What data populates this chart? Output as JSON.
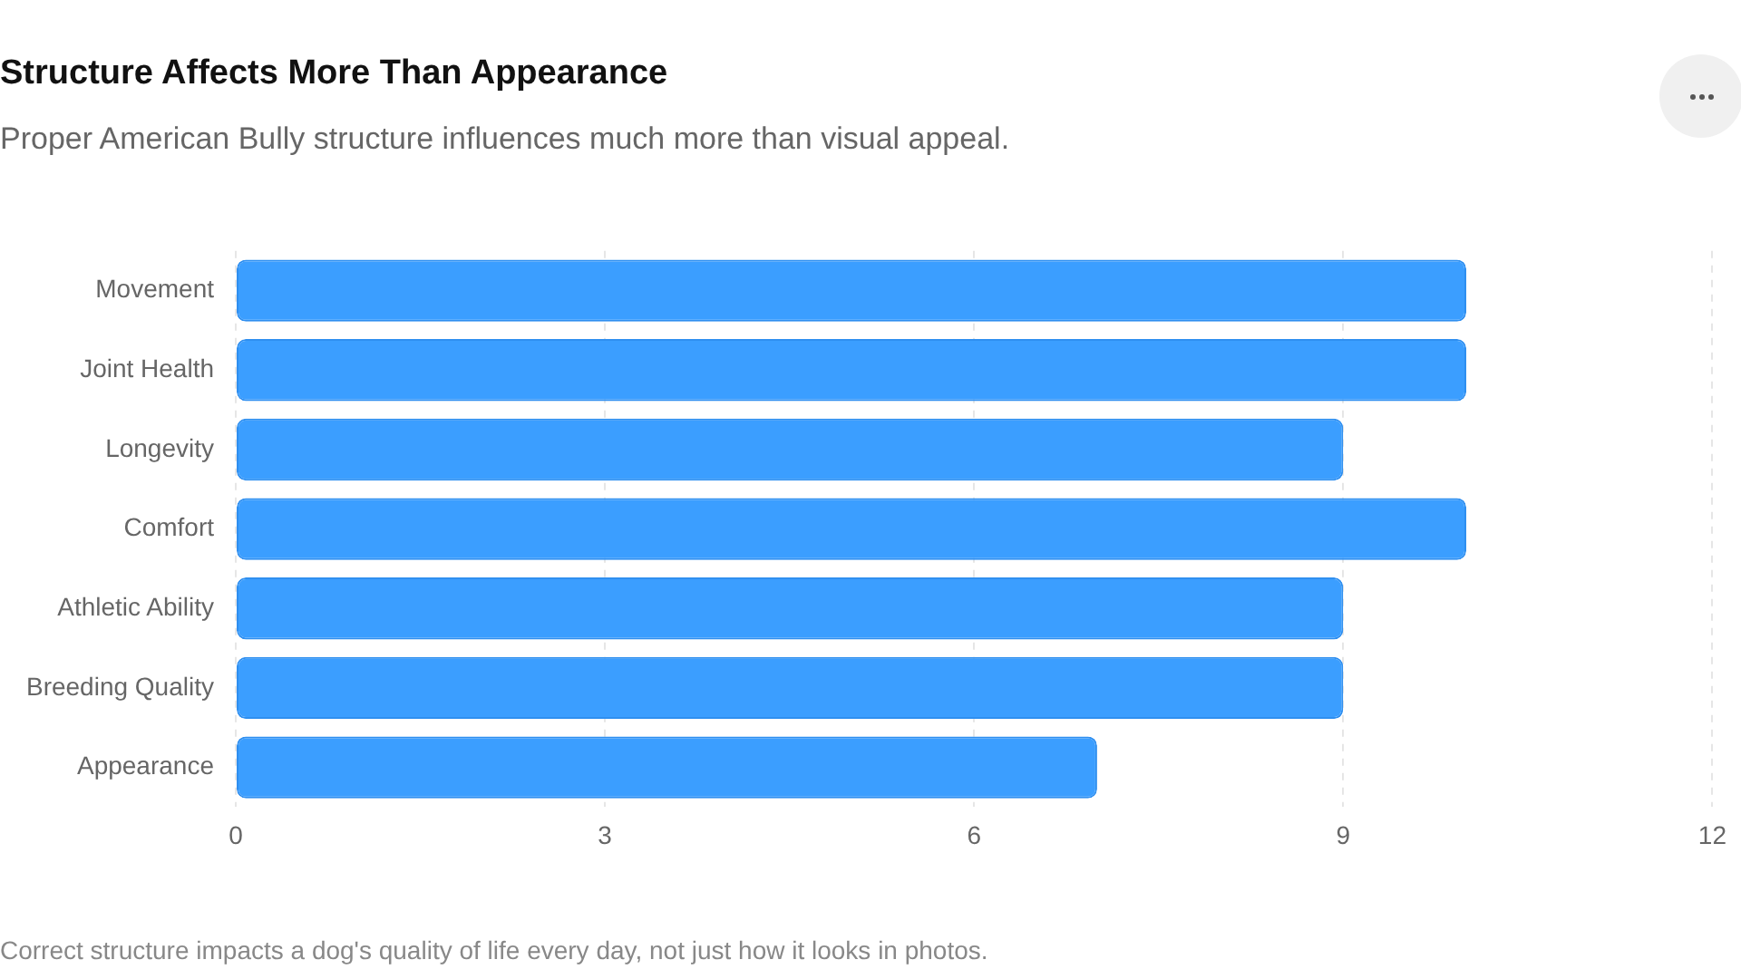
{
  "chart_data": {
    "type": "bar",
    "orientation": "horizontal",
    "title": "Structure Affects More Than Appearance",
    "subtitle": "Proper American Bully structure influences much more than visual appeal.",
    "categories": [
      "Movement",
      "Joint Health",
      "Longevity",
      "Comfort",
      "Athletic Ability",
      "Breeding Quality",
      "Appearance"
    ],
    "values": [
      10,
      10,
      9,
      10,
      9,
      9,
      7
    ],
    "color": "#3b9eff",
    "xlim": [
      0,
      12
    ],
    "xticks": [
      0,
      3,
      6,
      9,
      12
    ],
    "grid": "x",
    "annotations": [
      "Correct structure impacts a dog's quality of life every day, not just how it looks in photos."
    ]
  }
}
